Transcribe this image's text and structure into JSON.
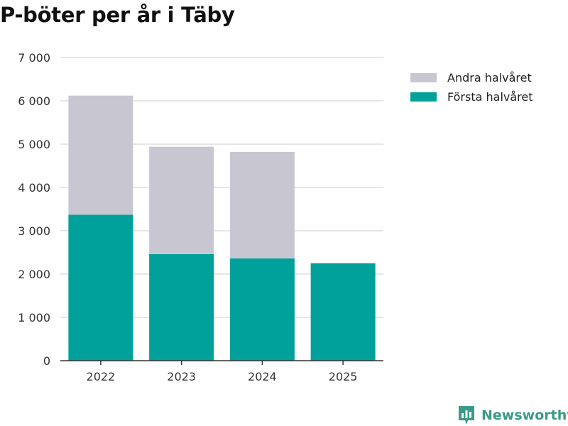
{
  "chart_data": {
    "type": "bar",
    "stacked": true,
    "title": "P-böter per år i Täby",
    "categories": [
      "2022",
      "2023",
      "2024",
      "2025"
    ],
    "series": [
      {
        "name": "Första halvåret",
        "color": "#00a19a",
        "values": [
          3370,
          2460,
          2360,
          2250
        ]
      },
      {
        "name": "Andra halvåret",
        "color": "#c8c7d1",
        "values": [
          2750,
          2480,
          2460,
          0
        ]
      }
    ],
    "ylim": [
      0,
      7000
    ],
    "yticks": [
      0,
      1000,
      2000,
      3000,
      4000,
      5000,
      6000,
      7000
    ],
    "ytick_labels": [
      "0",
      "1 000",
      "2 000",
      "3 000",
      "4 000",
      "5 000",
      "6 000",
      "7 000"
    ],
    "xlabel": "",
    "ylabel": "",
    "grid": true,
    "legend_position": "top-right"
  },
  "legend": {
    "items": [
      {
        "label": "Andra halvåret",
        "color": "#c8c7d1"
      },
      {
        "label": "Första halvåret",
        "color": "#00a19a"
      }
    ]
  },
  "brand": {
    "name": "Newsworthy",
    "color": "#3a9a87"
  }
}
